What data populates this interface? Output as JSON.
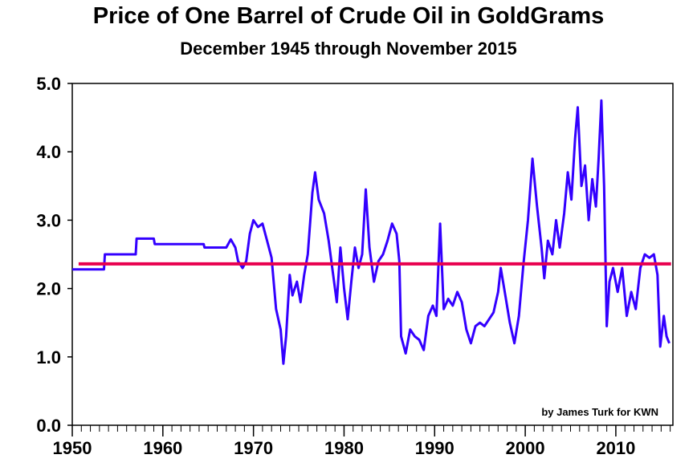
{
  "chart_data": {
    "type": "line",
    "title": "Price of One Barrel of Crude Oil in GoldGrams",
    "subtitle": "December 1945 through November 2015",
    "credit": "by James Turk for KWN",
    "xlabel": "",
    "ylabel": "",
    "xlim": [
      1950,
      2016.3
    ],
    "ylim": [
      0,
      5
    ],
    "x_ticks": [
      1950,
      1960,
      1970,
      1980,
      1990,
      2000,
      2010
    ],
    "y_ticks": [
      0.0,
      1.0,
      2.0,
      3.0,
      4.0,
      5.0
    ],
    "y_tick_labels": [
      "0.0",
      "1.0",
      "2.0",
      "3.0",
      "4.0",
      "5.0"
    ],
    "grid": false,
    "colors": {
      "series": "#3300ff",
      "average": "#e8004f"
    },
    "series": [
      {
        "values": [
          [
            1950,
            2.28
          ],
          [
            1953.5,
            2.28
          ],
          [
            1953.6,
            2.5
          ],
          [
            1957,
            2.5
          ],
          [
            1957.1,
            2.73
          ],
          [
            1959,
            2.73
          ],
          [
            1959.1,
            2.65
          ],
          [
            1964.5,
            2.65
          ],
          [
            1964.6,
            2.6
          ],
          [
            1967,
            2.6
          ],
          [
            1967.5,
            2.72
          ],
          [
            1968,
            2.6
          ],
          [
            1968.3,
            2.4
          ],
          [
            1968.8,
            2.3
          ],
          [
            1969.2,
            2.4
          ],
          [
            1969.6,
            2.8
          ],
          [
            1970,
            3.0
          ],
          [
            1970.5,
            2.9
          ],
          [
            1971,
            2.95
          ],
          [
            1971.5,
            2.7
          ],
          [
            1972,
            2.45
          ],
          [
            1972.5,
            1.7
          ],
          [
            1973,
            1.4
          ],
          [
            1973.3,
            0.9
          ],
          [
            1973.6,
            1.3
          ],
          [
            1974,
            2.2
          ],
          [
            1974.3,
            1.9
          ],
          [
            1974.8,
            2.1
          ],
          [
            1975.2,
            1.8
          ],
          [
            1975.6,
            2.2
          ],
          [
            1976,
            2.5
          ],
          [
            1976.5,
            3.4
          ],
          [
            1976.8,
            3.7
          ],
          [
            1977.2,
            3.3
          ],
          [
            1977.8,
            3.1
          ],
          [
            1978.3,
            2.7
          ],
          [
            1978.8,
            2.2
          ],
          [
            1979.2,
            1.8
          ],
          [
            1979.6,
            2.6
          ],
          [
            1980,
            2.0
          ],
          [
            1980.4,
            1.55
          ],
          [
            1980.8,
            2.1
          ],
          [
            1981.2,
            2.6
          ],
          [
            1981.6,
            2.3
          ],
          [
            1982,
            2.5
          ],
          [
            1982.4,
            3.45
          ],
          [
            1982.8,
            2.6
          ],
          [
            1983.3,
            2.1
          ],
          [
            1983.8,
            2.4
          ],
          [
            1984.3,
            2.5
          ],
          [
            1984.8,
            2.7
          ],
          [
            1985.3,
            2.95
          ],
          [
            1985.8,
            2.8
          ],
          [
            1986.1,
            2.4
          ],
          [
            1986.3,
            1.3
          ],
          [
            1986.8,
            1.05
          ],
          [
            1987.3,
            1.4
          ],
          [
            1987.8,
            1.3
          ],
          [
            1988.3,
            1.25
          ],
          [
            1988.8,
            1.1
          ],
          [
            1989.3,
            1.6
          ],
          [
            1989.8,
            1.75
          ],
          [
            1990.2,
            1.6
          ],
          [
            1990.6,
            2.95
          ],
          [
            1991,
            1.7
          ],
          [
            1991.5,
            1.85
          ],
          [
            1992,
            1.75
          ],
          [
            1992.5,
            1.95
          ],
          [
            1993,
            1.8
          ],
          [
            1993.5,
            1.4
          ],
          [
            1994,
            1.2
          ],
          [
            1994.5,
            1.45
          ],
          [
            1995,
            1.5
          ],
          [
            1995.5,
            1.45
          ],
          [
            1996,
            1.55
          ],
          [
            1996.5,
            1.65
          ],
          [
            1997,
            1.95
          ],
          [
            1997.3,
            2.3
          ],
          [
            1997.8,
            1.9
          ],
          [
            1998.3,
            1.5
          ],
          [
            1998.8,
            1.2
          ],
          [
            1999.3,
            1.6
          ],
          [
            1999.8,
            2.35
          ],
          [
            2000.3,
            3.0
          ],
          [
            2000.8,
            3.9
          ],
          [
            2001.3,
            3.2
          ],
          [
            2001.8,
            2.6
          ],
          [
            2002.1,
            2.15
          ],
          [
            2002.5,
            2.7
          ],
          [
            2003,
            2.5
          ],
          [
            2003.4,
            3.0
          ],
          [
            2003.8,
            2.6
          ],
          [
            2004.3,
            3.1
          ],
          [
            2004.7,
            3.7
          ],
          [
            2005.1,
            3.3
          ],
          [
            2005.5,
            4.2
          ],
          [
            2005.8,
            4.65
          ],
          [
            2006.2,
            3.5
          ],
          [
            2006.6,
            3.8
          ],
          [
            2007,
            3.0
          ],
          [
            2007.4,
            3.6
          ],
          [
            2007.8,
            3.2
          ],
          [
            2008.1,
            3.9
          ],
          [
            2008.4,
            4.75
          ],
          [
            2008.7,
            3.5
          ],
          [
            2009,
            1.45
          ],
          [
            2009.3,
            2.1
          ],
          [
            2009.7,
            2.3
          ],
          [
            2010.2,
            1.95
          ],
          [
            2010.7,
            2.3
          ],
          [
            2011.2,
            1.6
          ],
          [
            2011.7,
            1.95
          ],
          [
            2012.2,
            1.7
          ],
          [
            2012.7,
            2.3
          ],
          [
            2013.2,
            2.5
          ],
          [
            2013.7,
            2.45
          ],
          [
            2014.2,
            2.5
          ],
          [
            2014.6,
            2.2
          ],
          [
            2014.9,
            1.15
          ],
          [
            2015.3,
            1.6
          ],
          [
            2015.6,
            1.3
          ],
          [
            2015.9,
            1.2
          ]
        ]
      },
      {
        "values": [
          [
            1950.7,
            2.36
          ],
          [
            2016.1,
            2.36
          ]
        ]
      }
    ]
  }
}
